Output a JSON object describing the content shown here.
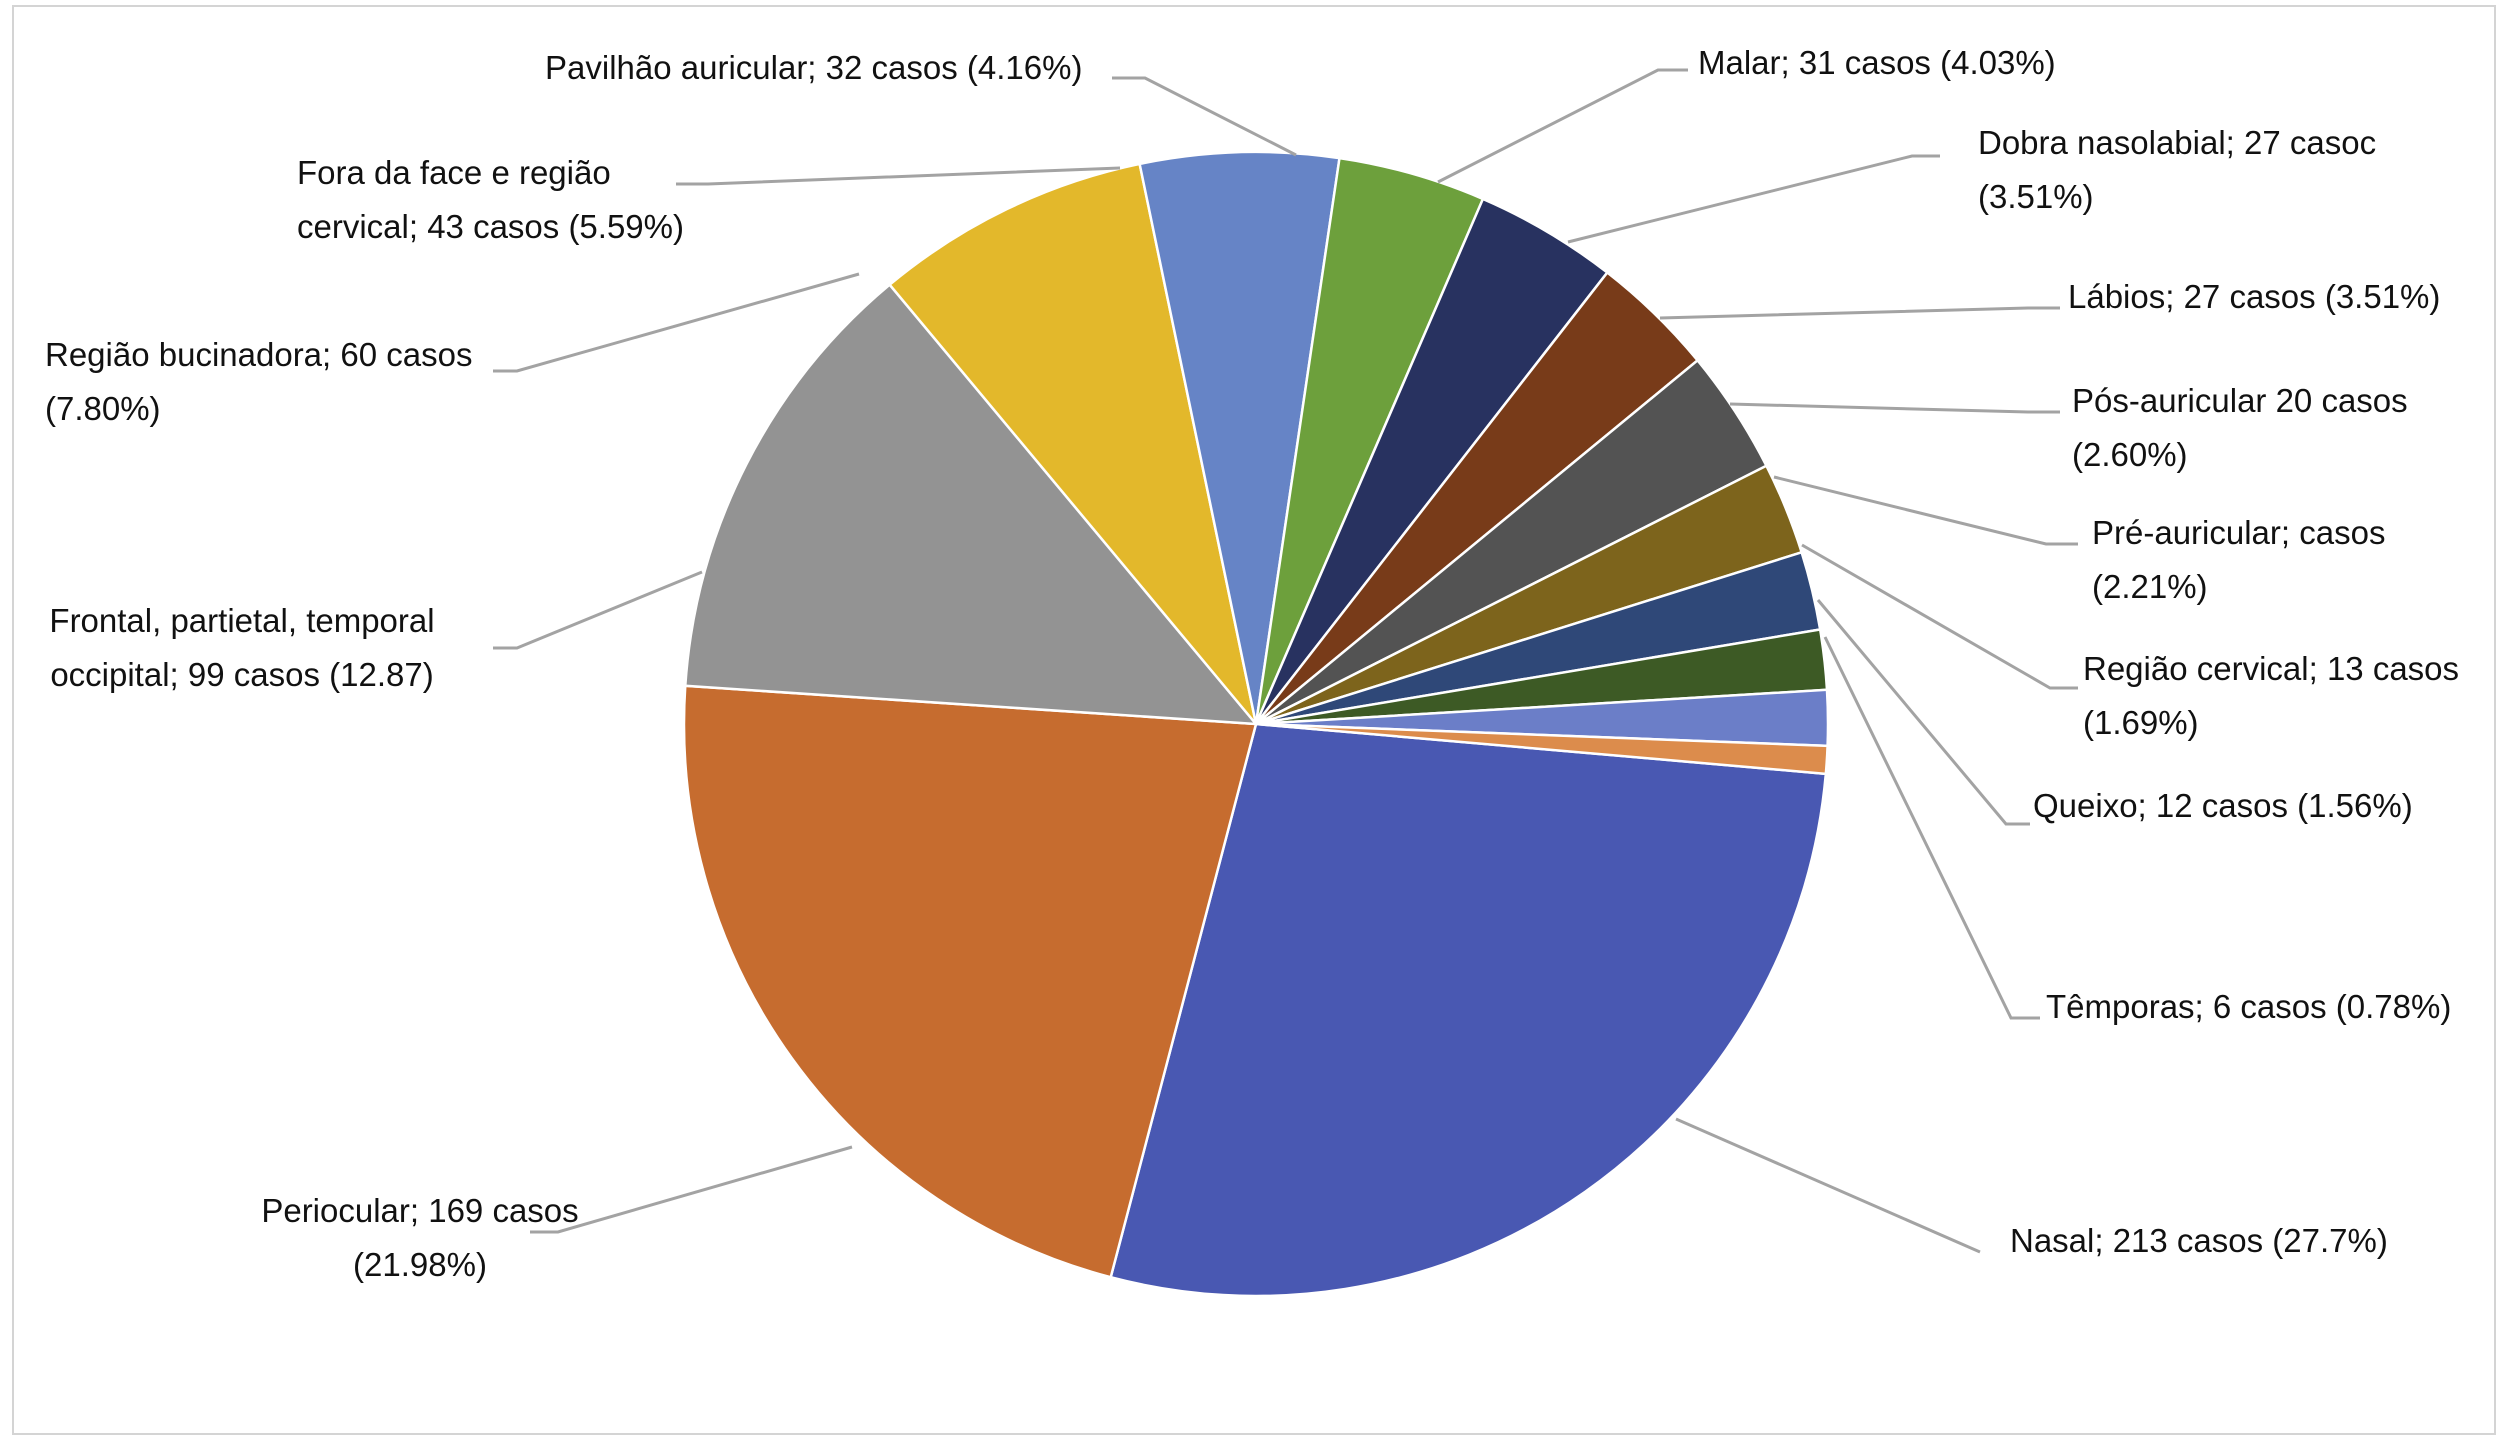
{
  "chart_data": {
    "type": "pie",
    "title": "",
    "start": "top",
    "direction": "clockwise",
    "slices": [
      {
        "label": "Nasal; 213 casos (27.7%)",
        "label_lines": [
          "Nasal; 213 casos (27.7%)"
        ],
        "value": 213,
        "percent": 27.7,
        "color": "#4958b2"
      },
      {
        "label": "Periocular; 169 casos (21.98%)",
        "label_lines": [
          "Periocular; 169 casos",
          "(21.98%)"
        ],
        "value": 169,
        "percent": 21.98,
        "color": "#c66c2f"
      },
      {
        "label": "Frontal, partietal, temporal occipital; 99 casos (12.87)",
        "label_lines": [
          "Frontal, partietal, temporal",
          "occipital; 99 casos (12.87)"
        ],
        "value": 99,
        "percent": 12.87,
        "color": "#939393"
      },
      {
        "label": "Região bucinadora; 60 casos (7.80%)",
        "label_lines": [
          "Região bucinadora; 60 casos",
          "(7.80%)"
        ],
        "value": 60,
        "percent": 7.8,
        "color": "#e3b82b"
      },
      {
        "label": "Fora da face e região cervical; 43 casos (5.59%)",
        "label_lines": [
          "Fora da face e região",
          "cervical; 43 casos (5.59%)"
        ],
        "value": 43,
        "percent": 5.59,
        "color": "#6684c6"
      },
      {
        "label": "Pavilhão auricular; 32 casos (4.16%)",
        "label_lines": [
          "Pavilhão auricular; 32 casos (4.16%)"
        ],
        "value": 32,
        "percent": 4.16,
        "color": "#6da03c"
      },
      {
        "label": "Malar; 31 casos (4.03%)",
        "label_lines": [
          "Malar; 31 casos (4.03%)"
        ],
        "value": 31,
        "percent": 4.03,
        "color": "#283260"
      },
      {
        "label": "Dobra nasolabial; 27 casoc (3.51%)",
        "label_lines": [
          "Dobra nasolabial; 27 casoc",
          "(3.51%)"
        ],
        "value": 27,
        "percent": 3.51,
        "color": "#783b19"
      },
      {
        "label": "Lábios; 27 casos (3.51%)",
        "label_lines": [
          "Lábios; 27 casos (3.51%)"
        ],
        "value": 27,
        "percent": 3.51,
        "color": "#535353"
      },
      {
        "label": "Pós-auricular 20 casos (2.60%)",
        "label_lines": [
          "Pós-auricular  20  casos",
          "(2.60%)"
        ],
        "value": 20,
        "percent": 2.6,
        "color": "#7d641c"
      },
      {
        "label": "Pré-auricular; casos (2.21%)",
        "label_lines": [
          "Pré-auricular;  casos",
          "(2.21%)"
        ],
        "value": 17,
        "percent": 2.21,
        "color": "#2f4878"
      },
      {
        "label": "Região cervical; 13 casos (1.69%)",
        "label_lines": [
          "Região cervical; 13 casos",
          "(1.69%)"
        ],
        "value": 13,
        "percent": 1.69,
        "color": "#3d5a25"
      },
      {
        "label": "Queixo; 12 casos (1.56%)",
        "label_lines": [
          "Queixo; 12 casos (1.56%)"
        ],
        "value": 12,
        "percent": 1.56,
        "color": "#6b7ec8"
      },
      {
        "label": "Têmporas; 6 casos (0.78%)",
        "label_lines": [
          "Têmporas; 6 casos (0.78%)"
        ],
        "value": 6,
        "percent": 0.78,
        "color": "#dc8c4c"
      }
    ]
  }
}
